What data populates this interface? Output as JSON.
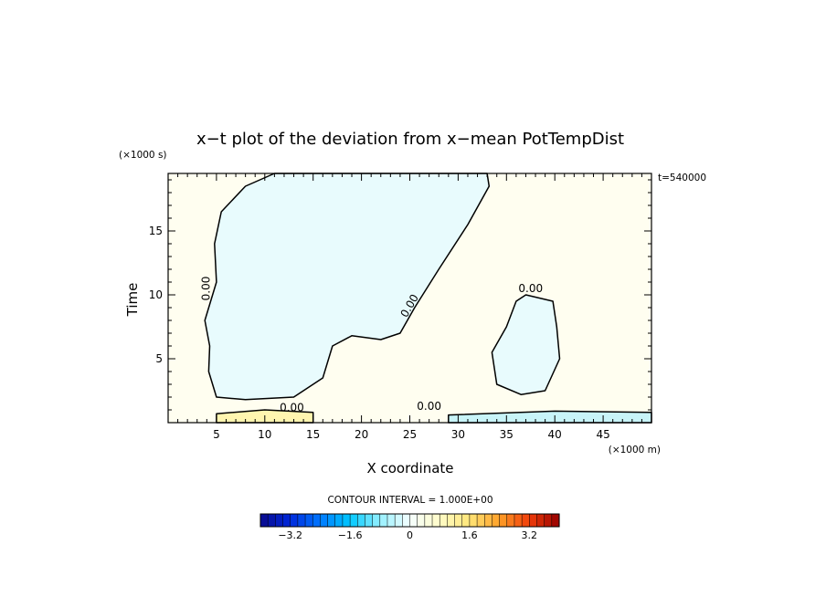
{
  "chart_data": {
    "type": "heatmap",
    "title": "x−t plot of the deviation from x−mean PotTempDist",
    "xlabel": "X coordinate",
    "ylabel": "Time",
    "x_unit": "(×1000 m)",
    "y_unit": "(×1000 s)",
    "annotation": "t=540000",
    "xlim": [
      0,
      50
    ],
    "ylim": [
      0,
      19.5
    ],
    "x_ticks": [
      5,
      10,
      15,
      20,
      25,
      30,
      35,
      40,
      45
    ],
    "y_ticks": [
      5,
      10,
      15
    ],
    "contour_interval_text": "CONTOUR INTERVAL = 1.000E+00",
    "contour_labels": [
      "0.00",
      "0.00",
      "0.00",
      "0.00",
      "0.00"
    ],
    "colorbar": {
      "min": -4,
      "max": 4,
      "tick_values": [
        -3.2,
        -1.6,
        0,
        1.6,
        3.2
      ],
      "tick_labels": [
        "−3.2",
        "−1.6",
        "0",
        "1.6",
        "3.2"
      ]
    },
    "regions": [
      {
        "sign": "negative",
        "description": "large cool region x~3-33, t~2-19.5",
        "outline": [
          [
            5,
            11
          ],
          [
            4.8,
            14
          ],
          [
            5.5,
            16.5
          ],
          [
            8,
            18.5
          ],
          [
            11,
            19.5
          ],
          [
            33,
            19.5
          ],
          [
            33.2,
            18.5
          ],
          [
            31,
            15.5
          ],
          [
            28,
            12
          ],
          [
            25.5,
            9
          ],
          [
            24,
            7
          ],
          [
            22,
            6.5
          ],
          [
            19,
            6.8
          ],
          [
            17,
            6
          ],
          [
            16,
            3.5
          ],
          [
            13,
            2
          ],
          [
            8,
            1.8
          ],
          [
            5,
            2
          ],
          [
            4.2,
            4
          ],
          [
            4.3,
            6
          ],
          [
            3.8,
            8
          ]
        ]
      },
      {
        "sign": "negative",
        "description": "cool region x~33-40, t~2-10",
        "outline": [
          [
            37,
            10
          ],
          [
            36,
            9.5
          ],
          [
            35,
            7.5
          ],
          [
            33.5,
            5.5
          ],
          [
            34,
            3
          ],
          [
            36.5,
            2.2
          ],
          [
            39,
            2.5
          ],
          [
            40.5,
            5
          ],
          [
            40.2,
            7.5
          ],
          [
            39.8,
            9.5
          ]
        ]
      },
      {
        "sign": "negative",
        "description": "near-surface cool band x~30-50, t<1",
        "outline": [
          [
            29,
            0
          ],
          [
            50,
            0
          ],
          [
            50,
            0.8
          ],
          [
            40,
            0.9
          ],
          [
            29,
            0.6
          ]
        ]
      },
      {
        "sign": "positive",
        "description": "near-surface warm band x~5-15, t<1",
        "outline": [
          [
            5,
            0
          ],
          [
            15,
            0
          ],
          [
            15,
            0.8
          ],
          [
            10,
            1
          ],
          [
            5,
            0.7
          ]
        ]
      }
    ],
    "colors": {
      "background_positive": "#fffef0",
      "cool_fill": "#e8fbfd",
      "cool_strong": "#c8f4f8",
      "warm_fill": "#fff5b0"
    }
  }
}
